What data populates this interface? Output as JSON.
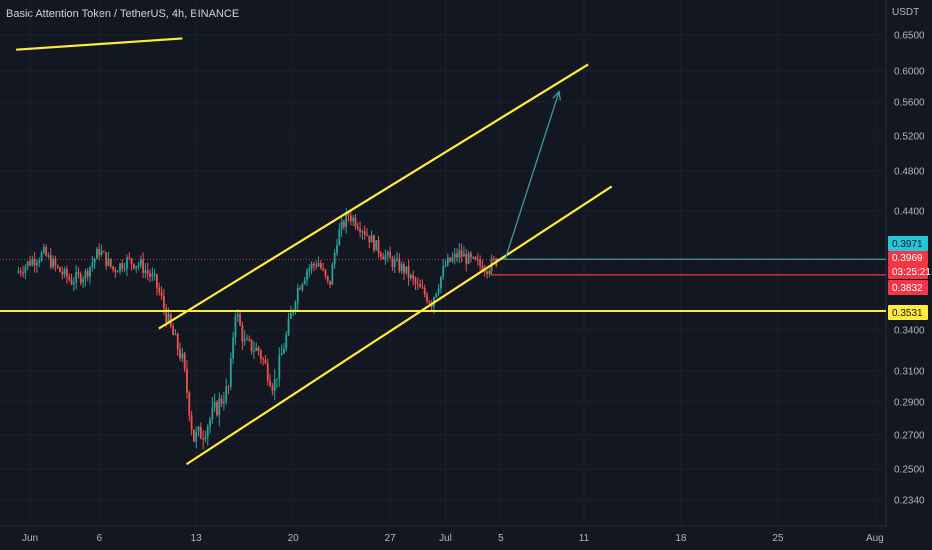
{
  "header": {
    "symbol_title": "Basic Attention Token / TetherUS, 4h, BINANCE"
  },
  "price_axis": {
    "currency_label": "USDT",
    "ticks": [
      "0.6500",
      "0.6000",
      "0.5600",
      "0.5200",
      "0.4800",
      "0.4400",
      "0.3400",
      "0.3100",
      "0.2900",
      "0.2700",
      "0.2500",
      "0.2340"
    ]
  },
  "time_axis": {
    "ticks": [
      {
        "label": "Jun",
        "day": 1
      },
      {
        "label": "6",
        "day": 6
      },
      {
        "label": "13",
        "day": 13
      },
      {
        "label": "20",
        "day": 20
      },
      {
        "label": "27",
        "day": 27
      },
      {
        "label": "Jul",
        "day": 31
      },
      {
        "label": "5",
        "day": 35
      },
      {
        "label": "11",
        "day": 41
      },
      {
        "label": "18",
        "day": 48
      },
      {
        "label": "25",
        "day": 55
      },
      {
        "label": "Aug",
        "day": 62
      }
    ]
  },
  "price_tags": {
    "target": {
      "label": "0.3971",
      "color": "#26c6da"
    },
    "last": {
      "label": "0.3969",
      "color": "#f23645"
    },
    "countdown": {
      "label": "03:25:21",
      "color": "#f23645"
    },
    "stop": {
      "label": "0.3832",
      "color": "#f23645"
    },
    "support": {
      "label": "0.3531",
      "color": "#ffeb3b"
    }
  },
  "colors": {
    "background": "#131722",
    "up_candle": "#26a69a",
    "down_candle": "#ef5350",
    "drawing_yellow": "#ffeb3b",
    "drawing_teal": "#3a9b9e",
    "drawing_red": "#f23645"
  },
  "chart_data": {
    "type": "candlestick",
    "path": [
      {
        "day": 0,
        "price": 0.385
      },
      {
        "day": 1,
        "price": 0.395
      },
      {
        "day": 2,
        "price": 0.402
      },
      {
        "day": 3,
        "price": 0.388
      },
      {
        "day": 4,
        "price": 0.378
      },
      {
        "day": 5,
        "price": 0.384
      },
      {
        "day": 6,
        "price": 0.405
      },
      {
        "day": 7,
        "price": 0.388
      },
      {
        "day": 8,
        "price": 0.396
      },
      {
        "day": 9,
        "price": 0.392
      },
      {
        "day": 10,
        "price": 0.378
      },
      {
        "day": 11,
        "price": 0.345
      },
      {
        "day": 12,
        "price": 0.318
      },
      {
        "day": 12.8,
        "price": 0.268
      },
      {
        "day": 13.5,
        "price": 0.272
      },
      {
        "day": 14.5,
        "price": 0.287
      },
      {
        "day": 15.4,
        "price": 0.3
      },
      {
        "day": 15.8,
        "price": 0.355
      },
      {
        "day": 16.5,
        "price": 0.33
      },
      {
        "day": 17.5,
        "price": 0.325
      },
      {
        "day": 18.6,
        "price": 0.3
      },
      {
        "day": 19.5,
        "price": 0.335
      },
      {
        "day": 20.3,
        "price": 0.37
      },
      {
        "day": 21,
        "price": 0.388
      },
      {
        "day": 21.8,
        "price": 0.395
      },
      {
        "day": 22.6,
        "price": 0.372
      },
      {
        "day": 23.2,
        "price": 0.418
      },
      {
        "day": 24,
        "price": 0.437
      },
      {
        "day": 25,
        "price": 0.425
      },
      {
        "day": 26,
        "price": 0.408
      },
      {
        "day": 27,
        "price": 0.396
      },
      {
        "day": 28,
        "price": 0.388
      },
      {
        "day": 29,
        "price": 0.372
      },
      {
        "day": 30,
        "price": 0.36
      },
      {
        "day": 31,
        "price": 0.392
      },
      {
        "day": 32,
        "price": 0.402
      },
      {
        "day": 33,
        "price": 0.394
      },
      {
        "day": 34,
        "price": 0.39
      },
      {
        "day": 34.8,
        "price": 0.3969
      }
    ],
    "horizontal_lines": [
      {
        "name": "resistance",
        "price": 0.3531
      },
      {
        "name": "target",
        "price": 0.3971
      },
      {
        "name": "stop",
        "price": 0.3832
      }
    ],
    "channel_lines": [
      {
        "name": "upper-channel",
        "from": {
          "day": 10.3,
          "price": 0.341
        },
        "to": {
          "day": 41.3,
          "price": 0.6092
        }
      },
      {
        "name": "lower-channel",
        "from": {
          "day": 12.3,
          "price": 0.2528
        },
        "to": {
          "day": 43,
          "price": 0.4646
        }
      }
    ],
    "other_lines": [
      {
        "name": "offscreen-line",
        "from": {
          "day": 0,
          "price": 0.6296
        },
        "to": {
          "day": 12,
          "price": 0.6452
        }
      }
    ],
    "projection_arrow": {
      "from": {
        "day": 35.3,
        "price": 0.3969
      },
      "to": {
        "day": 39.2,
        "price": 0.5734
      }
    }
  }
}
